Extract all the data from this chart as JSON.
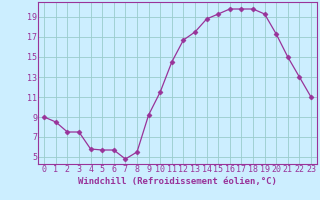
{
  "x": [
    0,
    1,
    2,
    3,
    4,
    5,
    6,
    7,
    8,
    9,
    10,
    11,
    12,
    13,
    14,
    15,
    16,
    17,
    18,
    19,
    20,
    21,
    22,
    23
  ],
  "y": [
    9,
    8.5,
    7.5,
    7.5,
    5.8,
    5.7,
    5.7,
    4.8,
    5.5,
    9.2,
    11.5,
    14.5,
    16.7,
    17.5,
    18.8,
    19.3,
    19.8,
    19.8,
    19.8,
    19.3,
    17.3,
    15.0,
    13.0,
    11.0
  ],
  "xlabel": "Windchill (Refroidissement éolien,°C)",
  "yticks": [
    5,
    7,
    9,
    11,
    13,
    15,
    17,
    19
  ],
  "xticks": [
    0,
    1,
    2,
    3,
    4,
    5,
    6,
    7,
    8,
    9,
    10,
    11,
    12,
    13,
    14,
    15,
    16,
    17,
    18,
    19,
    20,
    21,
    22,
    23
  ],
  "ylim": [
    4.3,
    20.5
  ],
  "xlim": [
    -0.5,
    23.5
  ],
  "line_color": "#993399",
  "marker": "D",
  "marker_size": 2.5,
  "background_color": "#cceeff",
  "grid_color": "#99cccc",
  "xlabel_fontsize": 6.5,
  "tick_fontsize": 6.0
}
